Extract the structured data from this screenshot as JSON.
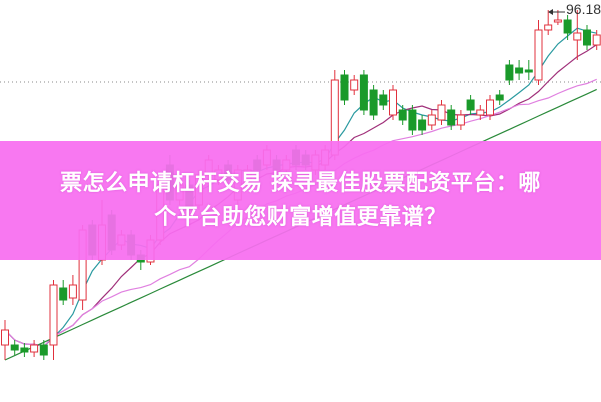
{
  "chart_data": {
    "type": "candlestick",
    "title": "",
    "xlabel": "",
    "ylabel": "",
    "price_label": "96.18",
    "ylim": [
      57,
      97.2
    ],
    "reference_line": 89.0,
    "up_color": "#e0303c",
    "down_color": "#1a9a2a",
    "ohlc": [
      [
        62.7,
        65.2,
        61.2,
        64.2
      ],
      [
        62.7,
        63.2,
        61.7,
        62.2
      ],
      [
        62.4,
        62.9,
        61.5,
        62.0
      ],
      [
        62.0,
        63.2,
        61.5,
        62.7
      ],
      [
        62.7,
        63.2,
        61.2,
        61.7
      ],
      [
        62.7,
        69.2,
        61.2,
        68.7
      ],
      [
        68.4,
        69.2,
        66.7,
        67.2
      ],
      [
        67.4,
        69.7,
        66.7,
        68.7
      ],
      [
        67.2,
        74.7,
        66.2,
        74.2
      ],
      [
        74.7,
        75.2,
        71.2,
        71.7
      ],
      [
        71.2,
        77.2,
        70.7,
        74.7
      ],
      [
        75.7,
        76.2,
        71.7,
        72.2
      ],
      [
        72.7,
        74.2,
        72.2,
        73.7
      ],
      [
        73.7,
        74.2,
        71.2,
        71.7
      ],
      [
        71.7,
        72.2,
        70.2,
        71.0
      ],
      [
        71.0,
        73.7,
        70.7,
        73.2
      ],
      [
        73.2,
        79.7,
        72.7,
        78.7
      ],
      [
        80.7,
        81.7,
        76.7,
        77.2
      ],
      [
        77.2,
        79.2,
        76.7,
        78.7
      ],
      [
        78.7,
        79.2,
        75.7,
        76.2
      ],
      [
        76.7,
        80.2,
        76.2,
        79.7
      ],
      [
        79.7,
        81.7,
        79.2,
        81.2
      ],
      [
        79.2,
        80.7,
        78.7,
        80.2
      ],
      [
        80.7,
        81.2,
        78.7,
        79.2
      ],
      [
        77.2,
        80.7,
        76.7,
        80.2
      ],
      [
        78.7,
        80.7,
        78.2,
        80.2
      ],
      [
        81.2,
        81.7,
        79.7,
        80.2
      ],
      [
        80.7,
        82.7,
        80.2,
        82.2
      ],
      [
        81.2,
        81.7,
        79.7,
        80.2
      ],
      [
        80.2,
        81.7,
        79.7,
        81.2
      ],
      [
        82.2,
        82.7,
        80.2,
        80.7
      ],
      [
        81.7,
        82.2,
        80.2,
        80.7
      ],
      [
        80.2,
        82.2,
        79.7,
        81.7
      ],
      [
        80.7,
        82.7,
        80.2,
        82.2
      ],
      [
        81.7,
        90.2,
        81.2,
        89.2
      ],
      [
        89.7,
        90.2,
        86.7,
        87.2
      ],
      [
        88.2,
        89.7,
        87.7,
        89.2
      ],
      [
        89.7,
        90.2,
        85.7,
        86.2
      ],
      [
        88.2,
        88.7,
        85.2,
        85.7
      ],
      [
        87.7,
        88.2,
        86.2,
        86.7
      ],
      [
        85.7,
        88.7,
        85.2,
        88.2
      ],
      [
        86.2,
        86.7,
        84.7,
        85.2
      ],
      [
        86.2,
        86.7,
        83.7,
        84.2
      ],
      [
        85.2,
        85.7,
        83.7,
        84.2
      ],
      [
        84.7,
        86.2,
        84.2,
        85.7
      ],
      [
        85.2,
        87.2,
        84.7,
        86.7
      ],
      [
        86.2,
        86.7,
        84.2,
        84.7
      ],
      [
        84.7,
        86.2,
        84.2,
        85.7
      ],
      [
        87.2,
        87.7,
        85.7,
        86.2
      ],
      [
        85.7,
        86.7,
        85.2,
        86.2
      ],
      [
        85.7,
        87.7,
        85.2,
        87.2
      ],
      [
        87.7,
        88.2,
        86.7,
        87.2
      ],
      [
        90.7,
        91.2,
        88.7,
        89.2
      ],
      [
        90.4,
        91.2,
        89.2,
        89.9
      ],
      [
        90.2,
        91.2,
        89.2,
        90.0
      ],
      [
        89.2,
        95.2,
        88.7,
        94.2
      ],
      [
        94.2,
        96.2,
        93.7,
        94.7
      ],
      [
        95.0,
        96.2,
        94.7,
        95.2
      ],
      [
        95.2,
        95.7,
        93.2,
        93.9
      ],
      [
        93.2,
        96.2,
        91.2,
        93.9
      ],
      [
        94.2,
        94.7,
        92.2,
        92.7
      ],
      [
        92.7,
        94.2,
        92.2,
        93.7
      ]
    ],
    "moving_averages": [
      {
        "period": 5,
        "color": "#2a9aa0"
      },
      {
        "period": 10,
        "color": "#a0307a"
      },
      {
        "period": 20,
        "color": "#e080e0"
      },
      {
        "period": 60,
        "color": "#2a8a3a"
      }
    ]
  },
  "banner": {
    "line1": "票怎么申请杠杆交易 探寻最佳股票配资平台：哪",
    "line2": "个平台助您财富增值更靠谱？",
    "color": "#f86ef0"
  }
}
